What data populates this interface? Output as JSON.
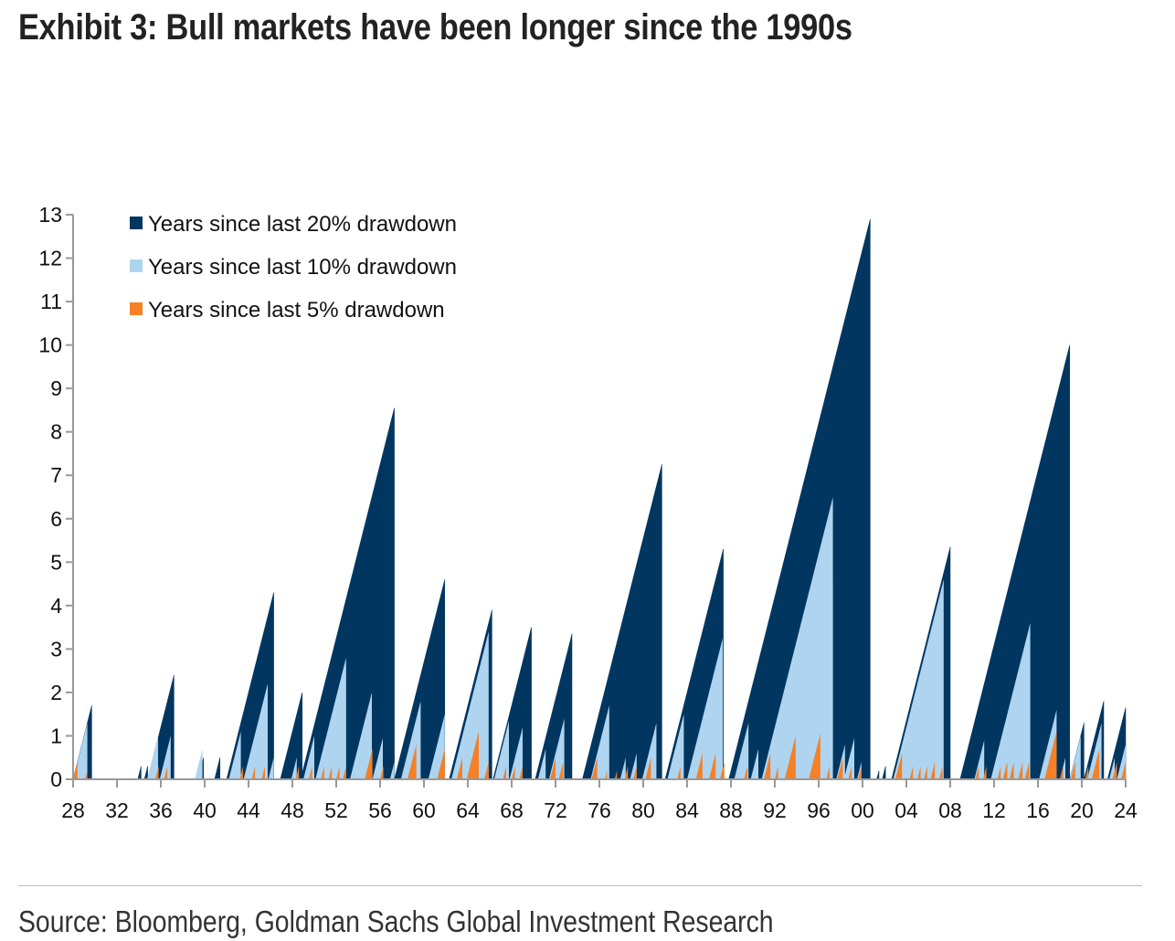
{
  "title": "Exhibit 3: Bull markets have been longer since the 1990s",
  "source": "Source: Bloomberg, Goldman Sachs Global Investment Research",
  "chart_data": {
    "type": "area",
    "title": "Exhibit 3: Bull markets have been longer since the 1990s",
    "xlabel": "",
    "ylabel": "",
    "xlim": [
      1928,
      2024
    ],
    "ylim": [
      0,
      13
    ],
    "yticks": [
      0,
      1,
      2,
      3,
      4,
      5,
      6,
      7,
      8,
      9,
      10,
      11,
      12,
      13
    ],
    "xticks": [
      1928,
      1932,
      1936,
      1940,
      1944,
      1948,
      1952,
      1956,
      1960,
      1964,
      1968,
      1972,
      1976,
      1980,
      1984,
      1988,
      1992,
      1996,
      2000,
      2004,
      2008,
      2012,
      2016,
      2020,
      2024
    ],
    "xtick_labels": [
      "28",
      "32",
      "36",
      "40",
      "44",
      "48",
      "52",
      "56",
      "60",
      "64",
      "68",
      "72",
      "76",
      "80",
      "84",
      "88",
      "92",
      "96",
      "00",
      "04",
      "08",
      "12",
      "16",
      "20",
      "24"
    ],
    "legend_position": "top-left",
    "note": "Each series is a sawtooth: value rises 1 year per year from a drawdown date [start] to the next drawdown [end], then resets to 0. Segments given as [start_year, end_year].",
    "series": [
      {
        "name": "Years since last 20% drawdown",
        "color": "#003660",
        "segments": [
          [
            1928.0,
            1929.7
          ],
          [
            1933.9,
            1934.2
          ],
          [
            1934.5,
            1934.8
          ],
          [
            1934.8,
            1937.2
          ],
          [
            1939.4,
            1939.9
          ],
          [
            1940.9,
            1941.4
          ],
          [
            1942.0,
            1946.3
          ],
          [
            1946.9,
            1948.9
          ],
          [
            1948.75,
            1957.3
          ],
          [
            1957.3,
            1961.9
          ],
          [
            1962.3,
            1966.2
          ],
          [
            1966.3,
            1969.8
          ],
          [
            1970.15,
            1973.5
          ],
          [
            1974.5,
            1974.8
          ],
          [
            1974.45,
            1981.7
          ],
          [
            1982.0,
            1987.3
          ],
          [
            1987.8,
            2000.7
          ],
          [
            2001.3,
            2001.5
          ],
          [
            2001.8,
            2002.1
          ],
          [
            2002.65,
            2008.0
          ],
          [
            2008.9,
            2018.9
          ],
          [
            2018.9,
            2020.2
          ],
          [
            2020.2,
            2022.0
          ],
          [
            2022.35,
            2024.0
          ]
        ]
      },
      {
        "name": "Years since last 10% drawdown",
        "color": "#AED4F0",
        "segments": [
          [
            1928.0,
            1929.3
          ],
          [
            1934.75,
            1935.75
          ],
          [
            1935.9,
            1936.9
          ],
          [
            1939.1,
            1939.8
          ],
          [
            1942.2,
            1943.3
          ],
          [
            1943.55,
            1945.75
          ],
          [
            1945.8,
            1946.3
          ],
          [
            1947.9,
            1948.4
          ],
          [
            1949.0,
            1950.0
          ],
          [
            1950.1,
            1952.9
          ],
          [
            1953.25,
            1955.25
          ],
          [
            1955.3,
            1956.25
          ],
          [
            1956.9,
            1957.3
          ],
          [
            1957.9,
            1959.7
          ],
          [
            1960.4,
            1961.9
          ],
          [
            1962.5,
            1965.9
          ],
          [
            1966.4,
            1967.75
          ],
          [
            1967.8,
            1969.0
          ],
          [
            1970.4,
            1971.1
          ],
          [
            1971.4,
            1972.8
          ],
          [
            1975.2,
            1976.9
          ],
          [
            1977.9,
            1978.4
          ],
          [
            1978.8,
            1979.4
          ],
          [
            1979.9,
            1981.2
          ],
          [
            1982.2,
            1983.7
          ],
          [
            1984.0,
            1987.25
          ],
          [
            1988.3,
            1989.6
          ],
          [
            1989.8,
            1990.5
          ],
          [
            1990.8,
            1997.3
          ],
          [
            1997.6,
            1998.4
          ],
          [
            1998.3,
            1999.25
          ],
          [
            1999.5,
            1999.9
          ],
          [
            2002.8,
            2007.4
          ],
          [
            2010.2,
            2011.1
          ],
          [
            2011.7,
            2015.3
          ],
          [
            2016.1,
            2017.7
          ],
          [
            2018.0,
            2018.5
          ],
          [
            2018.9,
            2019.9
          ],
          [
            2020.5,
            2021.8
          ],
          [
            2022.5,
            2023.0
          ],
          [
            2023.2,
            2024.0
          ]
        ]
      },
      {
        "name": "Years since last 5% drawdown",
        "color": "#F58025",
        "segments": [
          [
            1928.0,
            1928.4
          ],
          [
            1929.1,
            1929.3
          ],
          [
            1935.5,
            1935.8
          ],
          [
            1936.3,
            1936.6
          ],
          [
            1943.2,
            1943.5
          ],
          [
            1944.3,
            1944.6
          ],
          [
            1945.2,
            1945.5
          ],
          [
            1948.3,
            1948.6
          ],
          [
            1949.5,
            1949.8
          ],
          [
            1950.6,
            1950.9
          ],
          [
            1951.3,
            1951.6
          ],
          [
            1952.0,
            1952.3
          ],
          [
            1952.6,
            1952.9
          ],
          [
            1954.6,
            1955.3
          ],
          [
            1956.0,
            1956.3
          ],
          [
            1958.5,
            1959.3
          ],
          [
            1961.2,
            1961.9
          ],
          [
            1963.0,
            1963.5
          ],
          [
            1963.9,
            1965.0
          ],
          [
            1965.5,
            1965.9
          ],
          [
            1967.2,
            1967.5
          ],
          [
            1968.0,
            1968.3
          ],
          [
            1968.7,
            1969.0
          ],
          [
            1971.5,
            1972.0
          ],
          [
            1972.3,
            1972.7
          ],
          [
            1975.3,
            1975.8
          ],
          [
            1976.5,
            1976.7
          ],
          [
            1977.4,
            1977.6
          ],
          [
            1978.3,
            1978.6
          ],
          [
            1979.1,
            1979.4
          ],
          [
            1980.2,
            1980.7
          ],
          [
            1983.1,
            1983.4
          ],
          [
            1984.8,
            1985.4
          ],
          [
            1986.0,
            1986.6
          ],
          [
            1987.0,
            1987.4
          ],
          [
            1989.2,
            1989.5
          ],
          [
            1991.0,
            1991.6
          ],
          [
            1992.0,
            1992.3
          ],
          [
            1992.9,
            1993.9
          ],
          [
            1995.1,
            1996.15
          ],
          [
            1996.7,
            1997.0
          ],
          [
            1997.7,
            1998.2
          ],
          [
            1998.7,
            1999.0
          ],
          [
            1999.6,
            1999.9
          ],
          [
            2003.0,
            2003.6
          ],
          [
            2004.3,
            2004.6
          ],
          [
            2005.0,
            2005.3
          ],
          [
            2005.6,
            2005.9
          ],
          [
            2006.2,
            2006.6
          ],
          [
            2007.0,
            2007.3
          ],
          [
            2010.3,
            2010.6
          ],
          [
            2011.0,
            2011.3
          ],
          [
            2012.3,
            2012.6
          ],
          [
            2012.8,
            2013.2
          ],
          [
            2013.4,
            2013.8
          ],
          [
            2014.2,
            2014.6
          ],
          [
            2014.8,
            2015.2
          ],
          [
            2016.6,
            2017.7
          ],
          [
            2018.0,
            2018.3
          ],
          [
            2019.0,
            2019.4
          ],
          [
            2020.3,
            2020.6
          ],
          [
            2020.9,
            2021.6
          ],
          [
            2022.8,
            2023.2
          ],
          [
            2023.6,
            2024.0
          ]
        ]
      }
    ]
  }
}
